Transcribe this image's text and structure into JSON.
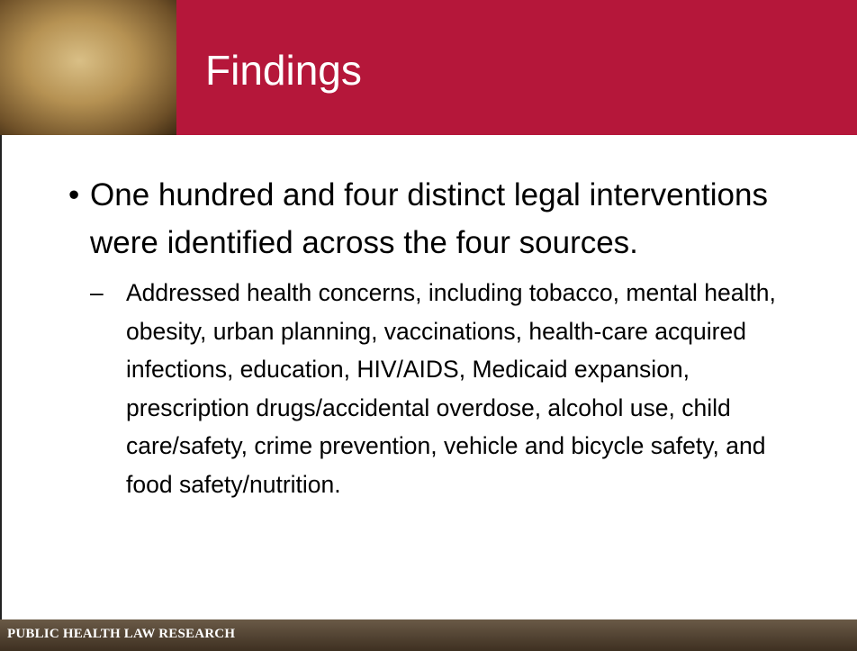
{
  "header": {
    "title": "Findings"
  },
  "bullets": [
    {
      "text": "One hundred and four distinct legal interventions were identified across the four sources.",
      "sub": [
        "Addressed health concerns, including tobacco, mental health, obesity, urban planning, vaccinations, health-care acquired infections, education, HIV/AIDS, Medicaid expansion, prescription drugs/accidental overdose, alcohol use, child care/safety, crime prevention, vehicle and bicycle safety, and food safety/nutrition."
      ]
    }
  ],
  "footer": {
    "text": "PUBLIC HEALTH LAW RESEARCH"
  }
}
